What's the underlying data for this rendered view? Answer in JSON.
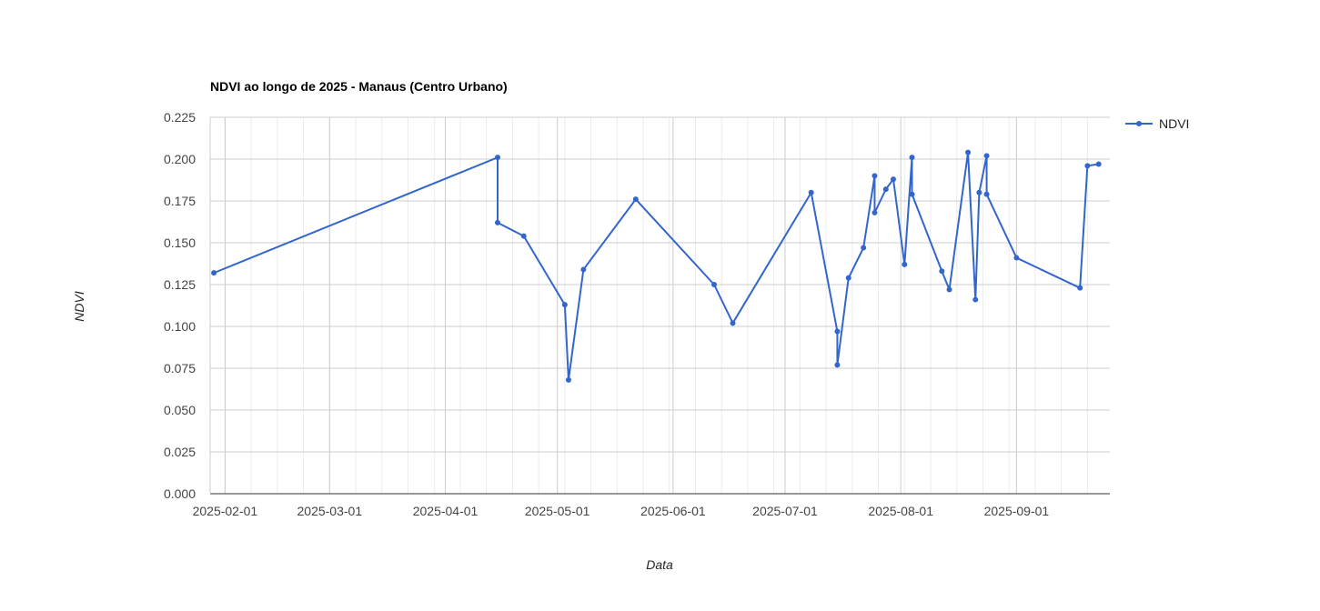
{
  "chart_data": {
    "type": "line",
    "title": "NDVI ao longo de 2025 - Manaus (Centro Urbano)",
    "xlabel": "Data",
    "ylabel": "NDVI",
    "xlim": [
      "2025-01-28",
      "2025-09-26"
    ],
    "ylim": [
      0,
      0.225
    ],
    "x_ticks": [
      "2025-02-01",
      "2025-03-01",
      "2025-04-01",
      "2025-05-01",
      "2025-06-01",
      "2025-07-01",
      "2025-08-01",
      "2025-09-01"
    ],
    "y_ticks": [
      "0.000",
      "0.025",
      "0.050",
      "0.075",
      "0.100",
      "0.125",
      "0.150",
      "0.175",
      "0.200",
      "0.225"
    ],
    "grid": true,
    "legend": "top-right",
    "series": [
      {
        "name": "NDVI",
        "color": "#3366cc",
        "points": [
          {
            "x": "2025-01-29",
            "y": 0.132
          },
          {
            "x": "2025-04-15",
            "y": 0.201
          },
          {
            "x": "2025-04-15",
            "y": 0.162
          },
          {
            "x": "2025-04-22",
            "y": 0.154
          },
          {
            "x": "2025-05-03",
            "y": 0.113
          },
          {
            "x": "2025-05-04",
            "y": 0.068
          },
          {
            "x": "2025-05-08",
            "y": 0.134
          },
          {
            "x": "2025-05-22",
            "y": 0.176
          },
          {
            "x": "2025-06-12",
            "y": 0.125
          },
          {
            "x": "2025-06-17",
            "y": 0.102
          },
          {
            "x": "2025-07-08",
            "y": 0.18
          },
          {
            "x": "2025-07-15",
            "y": 0.097
          },
          {
            "x": "2025-07-15",
            "y": 0.077
          },
          {
            "x": "2025-07-18",
            "y": 0.129
          },
          {
            "x": "2025-07-22",
            "y": 0.147
          },
          {
            "x": "2025-07-25",
            "y": 0.19
          },
          {
            "x": "2025-07-25",
            "y": 0.168
          },
          {
            "x": "2025-07-28",
            "y": 0.182
          },
          {
            "x": "2025-07-30",
            "y": 0.188
          },
          {
            "x": "2025-08-02",
            "y": 0.137
          },
          {
            "x": "2025-08-04",
            "y": 0.201
          },
          {
            "x": "2025-08-04",
            "y": 0.179
          },
          {
            "x": "2025-08-12",
            "y": 0.133
          },
          {
            "x": "2025-08-14",
            "y": 0.122
          },
          {
            "x": "2025-08-19",
            "y": 0.204
          },
          {
            "x": "2025-08-21",
            "y": 0.116
          },
          {
            "x": "2025-08-22",
            "y": 0.18
          },
          {
            "x": "2025-08-24",
            "y": 0.202
          },
          {
            "x": "2025-08-24",
            "y": 0.179
          },
          {
            "x": "2025-09-01",
            "y": 0.141
          },
          {
            "x": "2025-09-18",
            "y": 0.123
          },
          {
            "x": "2025-09-20",
            "y": 0.196
          },
          {
            "x": "2025-09-23",
            "y": 0.197
          }
        ]
      }
    ]
  }
}
